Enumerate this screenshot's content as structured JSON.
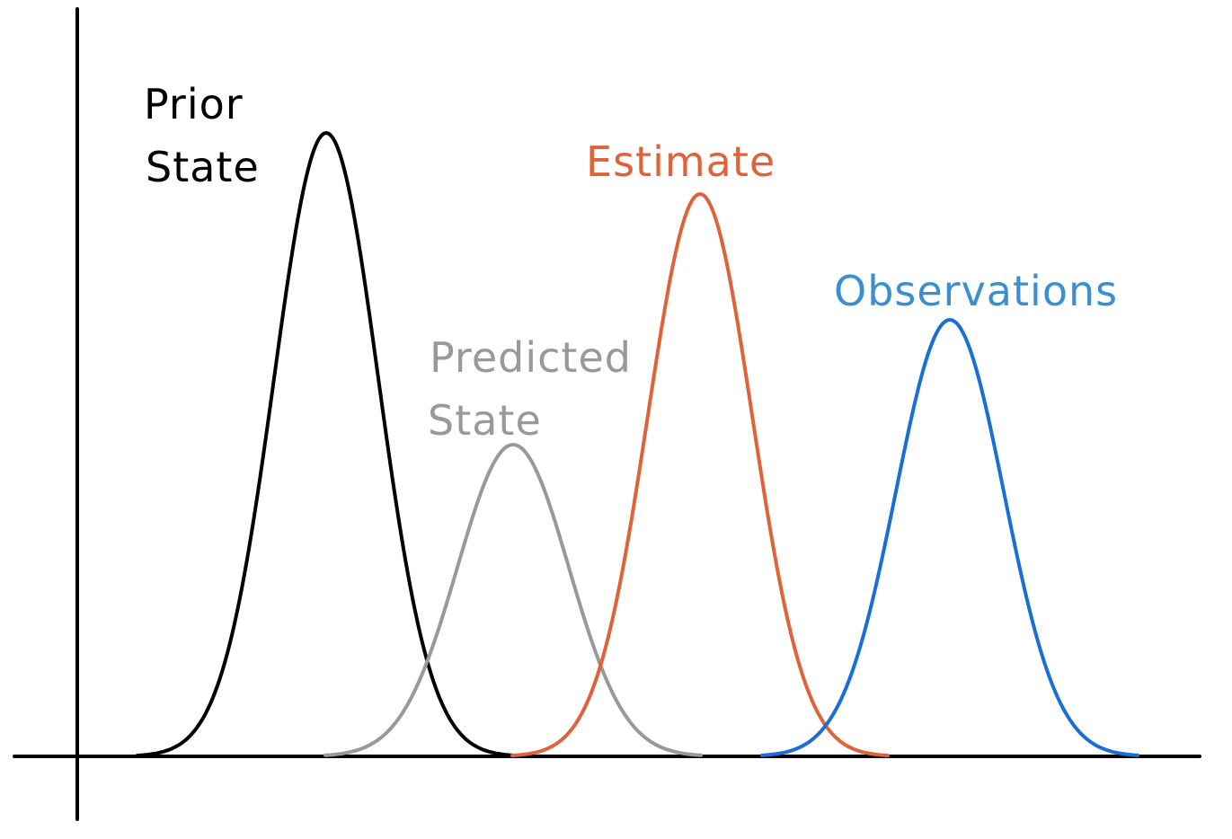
{
  "colors": {
    "axis": "#000000",
    "prior": "#000000",
    "predicted": "#999999",
    "estimate": "#e0623a",
    "observations": "#1a6fd6",
    "observations_label": "#3a8fd0"
  },
  "labels": {
    "prior_line1": "Prior",
    "prior_line2": "State",
    "predicted_line1": "Predicted",
    "predicted_line2": "State",
    "estimate": "Estimate",
    "observations": "Observations"
  }
}
